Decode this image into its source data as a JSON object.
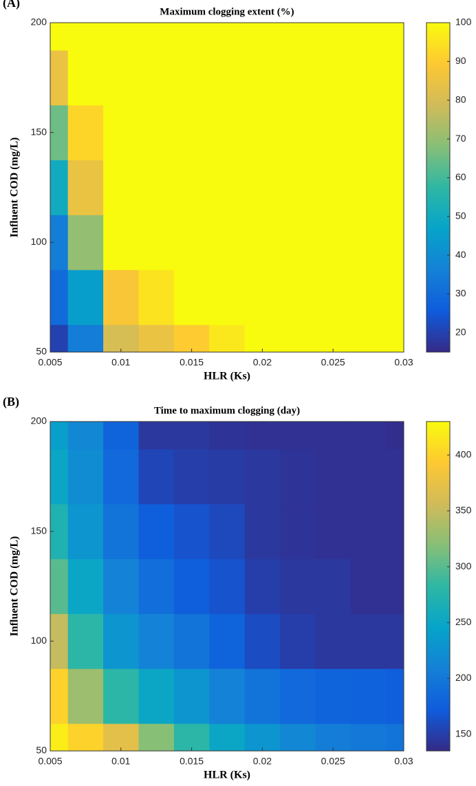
{
  "chart_data": [
    {
      "type": "heatmap",
      "label": "(A)",
      "title": "Maximum clogging extent (%)",
      "x_label": "HLR (Ks)",
      "y_label": "Influent COD (mg/L)",
      "colormap": "parula",
      "x": [
        0.005,
        0.0075,
        0.01,
        0.0125,
        0.015,
        0.0175,
        0.02,
        0.0225,
        0.025,
        0.0275,
        0.03
      ],
      "y": [
        50,
        75,
        100,
        125,
        150,
        175,
        200
      ],
      "z": [
        [
          20,
          35,
          80,
          85,
          90,
          96,
          100,
          100,
          100,
          100,
          100
        ],
        [
          30,
          45,
          88,
          95,
          100,
          100,
          100,
          100,
          100,
          100,
          100
        ],
        [
          35,
          70,
          100,
          100,
          100,
          100,
          100,
          100,
          100,
          100,
          100
        ],
        [
          50,
          85,
          100,
          100,
          100,
          100,
          100,
          100,
          100,
          100,
          100
        ],
        [
          65,
          92,
          100,
          100,
          100,
          100,
          100,
          100,
          100,
          100,
          100
        ],
        [
          85,
          100,
          100,
          100,
          100,
          100,
          100,
          100,
          100,
          100,
          100
        ],
        [
          100,
          100,
          100,
          100,
          100,
          100,
          100,
          100,
          100,
          100,
          100
        ]
      ],
      "xlim": [
        0.005,
        0.03
      ],
      "xticks": [
        0.005,
        0.01,
        0.015,
        0.02,
        0.025,
        0.03
      ],
      "ylim": [
        50,
        200
      ],
      "yticks": [
        50,
        100,
        150,
        200
      ],
      "clim": [
        15,
        100
      ],
      "cticks": [
        20,
        30,
        40,
        50,
        60,
        70,
        80,
        90,
        100
      ]
    },
    {
      "type": "heatmap",
      "label": "(B)",
      "title": "Time to maximum clogging (day)",
      "x_label": "HLR (Ks)",
      "y_label": "Influent COD (mg/L)",
      "colormap": "parula",
      "x": [
        0.005,
        0.0075,
        0.01,
        0.0125,
        0.015,
        0.0175,
        0.02,
        0.0225,
        0.025,
        0.0275,
        0.03
      ],
      "y": [
        50,
        75,
        100,
        125,
        150,
        175,
        200
      ],
      "z": [
        [
          420,
          400,
          370,
          320,
          280,
          250,
          230,
          215,
          205,
          200,
          195
        ],
        [
          400,
          330,
          280,
          250,
          230,
          210,
          195,
          185,
          180,
          178,
          175
        ],
        [
          350,
          280,
          230,
          210,
          195,
          180,
          160,
          150,
          145,
          145,
          145
        ],
        [
          300,
          250,
          210,
          190,
          175,
          165,
          150,
          145,
          145,
          140,
          140
        ],
        [
          270,
          230,
          195,
          175,
          165,
          158,
          145,
          142,
          140,
          140,
          140
        ],
        [
          250,
          220,
          185,
          155,
          150,
          148,
          145,
          142,
          140,
          140,
          140
        ],
        [
          240,
          215,
          180,
          145,
          145,
          142,
          140,
          140,
          140,
          140,
          138
        ]
      ],
      "xlim": [
        0.005,
        0.03
      ],
      "xticks": [
        0.005,
        0.01,
        0.015,
        0.02,
        0.025,
        0.03
      ],
      "ylim": [
        50,
        200
      ],
      "yticks": [
        50,
        100,
        150,
        200
      ],
      "clim": [
        135,
        430
      ],
      "cticks": [
        150,
        200,
        250,
        300,
        350,
        400
      ]
    }
  ]
}
